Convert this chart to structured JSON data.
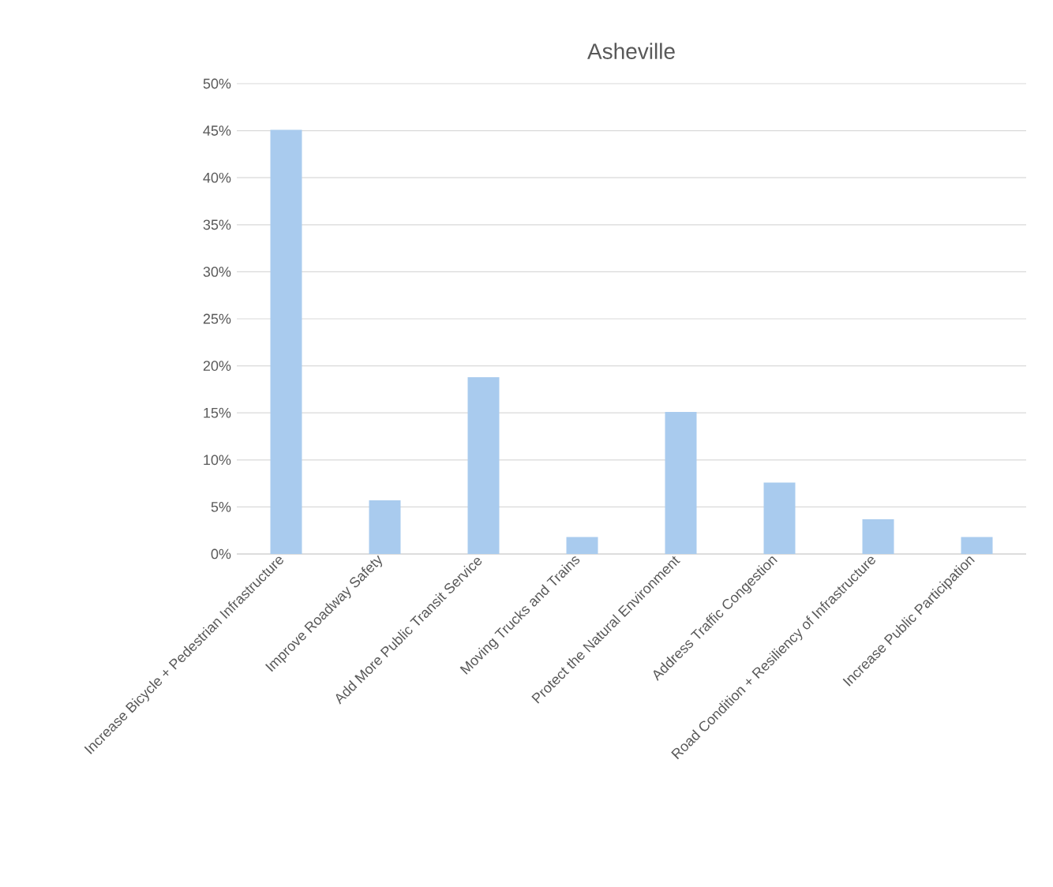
{
  "chart_data": {
    "type": "bar",
    "title": "Asheville",
    "categories": [
      "Increase Bicycle + Pedestrian Infrastructure",
      "Improve Roadway Safety",
      "Add More Public Transit Service",
      "Moving Trucks and Trains",
      "Protect the Natural Environment",
      "Address Traffic Congestion",
      "Road Condition + Resiliency of Infrastructure",
      "Increase Public Participation"
    ],
    "values": [
      45.1,
      5.7,
      18.8,
      1.8,
      15.1,
      7.6,
      3.7,
      1.8
    ],
    "color": "#a9cbee",
    "ylim": [
      0,
      50
    ],
    "yticks": [
      {
        "value": 0,
        "label": "0%"
      },
      {
        "value": 5,
        "label": "5%"
      },
      {
        "value": 10,
        "label": "10%"
      },
      {
        "value": 15,
        "label": "15%"
      },
      {
        "value": 20,
        "label": "20%"
      },
      {
        "value": 25,
        "label": "25%"
      },
      {
        "value": 30,
        "label": "30%"
      },
      {
        "value": 35,
        "label": "35%"
      },
      {
        "value": 40,
        "label": "40%"
      },
      {
        "value": 45,
        "label": "45%"
      },
      {
        "value": 50,
        "label": "50%"
      }
    ],
    "grid": "y"
  }
}
